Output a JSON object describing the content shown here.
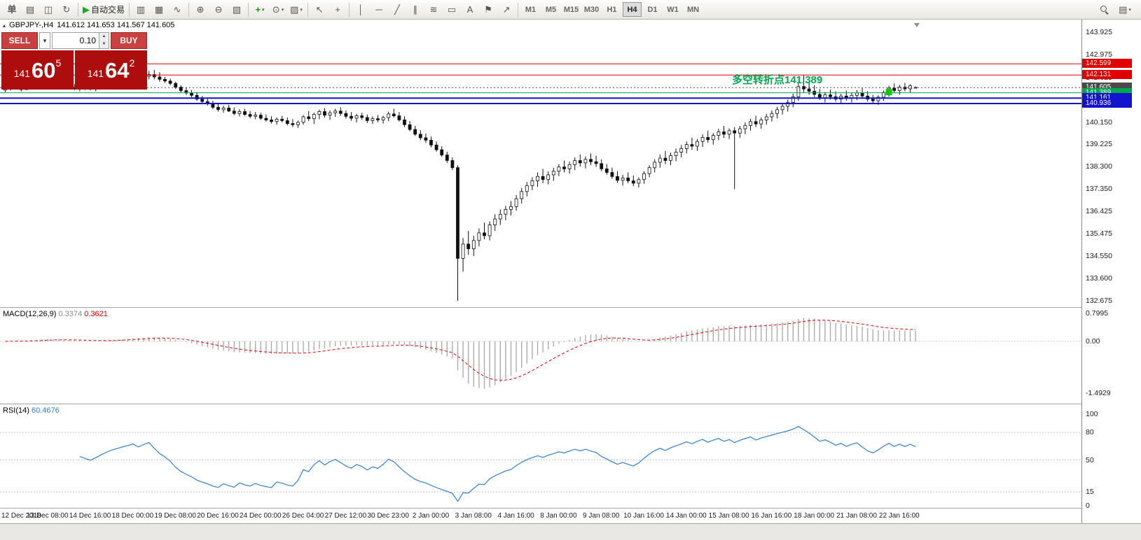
{
  "toolbar": {
    "items": [
      {
        "name": "new-order-button",
        "glyph": "单",
        "bold": true
      },
      {
        "name": "charts-button",
        "glyph": "▤"
      },
      {
        "name": "profiles-button",
        "glyph": "◫"
      },
      {
        "name": "refresh-button",
        "glyph": "↻"
      },
      {
        "type": "sep"
      },
      {
        "name": "auto-trading-button",
        "glyph": "▶",
        "glyph_color": "#28a428",
        "label": "自动交易"
      },
      {
        "type": "sep"
      },
      {
        "name": "bar-chart-button",
        "glyph": "▥"
      },
      {
        "name": "candlestick-chart-button",
        "glyph": "▦"
      },
      {
        "name": "line-chart-button",
        "glyph": "∿"
      },
      {
        "type": "sep"
      },
      {
        "name": "zoom-in-button",
        "glyph": "⊕"
      },
      {
        "name": "zoom-out-button",
        "glyph": "⊖"
      },
      {
        "name": "tile-windows-button",
        "glyph": "▧"
      },
      {
        "type": "sep"
      },
      {
        "name": "indicators-button",
        "glyph": "+",
        "glyph_color": "#1e9e1e",
        "bold": true,
        "caret": true
      },
      {
        "name": "periods-button",
        "glyph": "⊙",
        "caret": true
      },
      {
        "name": "templates-button",
        "glyph": "▨",
        "caret": true
      },
      {
        "type": "sep"
      },
      {
        "name": "cursor-button",
        "glyph": "↖"
      },
      {
        "name": "crosshair-button",
        "glyph": "+"
      },
      {
        "type": "sep"
      },
      {
        "name": "vertical-line-button",
        "glyph": "│"
      },
      {
        "name": "horizontal-line-button",
        "glyph": "─"
      },
      {
        "name": "trendline-button",
        "glyph": "╱"
      },
      {
        "name": "channel-button",
        "glyph": "∥"
      },
      {
        "name": "fibonacci-button",
        "glyph": "≋"
      },
      {
        "name": "shapes-button",
        "glyph": "▭"
      },
      {
        "name": "text-button",
        "glyph": "A"
      },
      {
        "name": "label-button",
        "glyph": "⚑"
      },
      {
        "name": "arrow-tool-button",
        "glyph": "↗"
      },
      {
        "type": "sep"
      }
    ],
    "timeframes": [
      "M1",
      "M5",
      "M15",
      "M30",
      "H1",
      "H4",
      "D1",
      "W1",
      "MN"
    ],
    "active_timeframe": "H4",
    "right_items": [
      {
        "name": "search-button",
        "glyph": "mag"
      },
      {
        "name": "data-window-button",
        "glyph": "▤",
        "caret": true
      }
    ]
  },
  "trade_panel": {
    "sell_label": "SELL",
    "buy_label": "BUY",
    "volume": "0.10",
    "dropdown_caret": "▼",
    "spin_up": "▲",
    "spin_down": "▼",
    "sell_price": {
      "prefix": "141",
      "big": "60",
      "sup": "5"
    },
    "buy_price": {
      "prefix": "141",
      "big": "64",
      "sup": "2"
    }
  },
  "chart": {
    "symbol_title": "GBPJPY-,H4",
    "ohlc_text": "141.612 141.653 141.567 141.605",
    "annotation": {
      "text": "多空转折点141.389",
      "price": 141.389,
      "color": "#00a651"
    },
    "marker": {
      "bar_index": 166,
      "price": 141.43,
      "color": "#00cc00"
    },
    "levels": [
      {
        "price": 142.599,
        "label": "142.599",
        "color": "#e00000",
        "line": "solid",
        "width": 1
      },
      {
        "price": 142.131,
        "label": "142.131",
        "color": "#e00000",
        "line": "solid",
        "width": 1
      },
      {
        "price": 141.605,
        "label": "141.605",
        "color": "#4a4a4a",
        "line": "dotted",
        "width": 1
      },
      {
        "price": 141.389,
        "label": "141.389",
        "color": "#00a651",
        "line": "solid",
        "width": 1
      },
      {
        "price": 141.161,
        "label": "141.161",
        "color": "#1414cc",
        "line": "solid",
        "width": 2
      },
      {
        "price": 140.936,
        "label": "140.936",
        "color": "#1414cc",
        "line": "solid",
        "width": 2
      }
    ]
  },
  "chart_data": {
    "type": "candlestick",
    "title": "GBPJPY- H4",
    "ylim": [
      132.675,
      143.925
    ],
    "y_ticks": [
      143.925,
      142.975,
      142.025,
      141.1,
      140.15,
      139.225,
      138.3,
      137.35,
      136.425,
      135.475,
      134.55,
      133.6,
      132.675
    ],
    "x_labels": [
      "12 Dec 2018",
      "13 Dec 08:00",
      "14 Dec 16:00",
      "18 Dec 00:00",
      "19 Dec 08:00",
      "20 Dec 16:00",
      "24 Dec 00:00",
      "26 Dec 04:00",
      "27 Dec 12:00",
      "30 Dec 23:00",
      "2 Jan 00:00",
      "3 Jan 08:00",
      "4 Jan 16:00",
      "8 Jan 00:00",
      "9 Jan 08:00",
      "10 Jan 16:00",
      "14 Jan 00:00",
      "15 Jan 08:00",
      "16 Jan 16:00",
      "18 Jan 00:00",
      "21 Jan 08:00",
      "22 Jan 16:00"
    ],
    "bars_per_label": 8,
    "candles": [
      [
        141.5,
        141.68,
        141.42,
        141.55
      ],
      [
        141.55,
        141.72,
        141.48,
        141.65
      ],
      [
        141.65,
        141.78,
        141.55,
        141.6
      ],
      [
        141.6,
        141.7,
        141.45,
        141.52
      ],
      [
        141.52,
        141.75,
        141.5,
        141.7
      ],
      [
        141.7,
        141.88,
        141.62,
        141.8
      ],
      [
        141.8,
        141.92,
        141.68,
        141.75
      ],
      [
        141.75,
        141.95,
        141.7,
        141.85
      ],
      [
        141.85,
        141.98,
        141.72,
        141.9
      ],
      [
        141.9,
        141.95,
        141.65,
        141.72
      ],
      [
        141.72,
        141.85,
        141.6,
        141.65
      ],
      [
        141.65,
        141.8,
        141.55,
        141.75
      ],
      [
        141.75,
        141.82,
        141.58,
        141.62
      ],
      [
        141.62,
        141.75,
        141.5,
        141.55
      ],
      [
        141.55,
        141.7,
        141.45,
        141.65
      ],
      [
        141.65,
        141.72,
        141.5,
        141.6
      ],
      [
        141.6,
        141.7,
        141.48,
        141.55
      ],
      [
        141.55,
        141.68,
        141.45,
        141.62
      ],
      [
        141.62,
        141.75,
        141.55,
        141.7
      ],
      [
        141.7,
        141.82,
        141.6,
        141.78
      ],
      [
        141.78,
        141.9,
        141.7,
        141.85
      ],
      [
        141.85,
        141.95,
        141.75,
        141.9
      ],
      [
        141.9,
        142.0,
        141.8,
        141.95
      ],
      [
        141.95,
        142.05,
        141.85,
        142.0
      ],
      [
        142.0,
        142.1,
        141.9,
        142.05
      ],
      [
        142.05,
        142.2,
        141.95,
        142.0
      ],
      [
        142.0,
        142.12,
        141.88,
        142.08
      ],
      [
        142.08,
        142.3,
        141.95,
        142.15
      ],
      [
        142.15,
        142.35,
        141.95,
        142.05
      ],
      [
        142.05,
        142.25,
        141.85,
        141.95
      ],
      [
        141.95,
        142.05,
        141.8,
        141.88
      ],
      [
        141.88,
        141.98,
        141.7,
        141.78
      ],
      [
        141.78,
        141.85,
        141.55,
        141.62
      ],
      [
        141.62,
        141.7,
        141.4,
        141.48
      ],
      [
        141.48,
        141.6,
        141.3,
        141.38
      ],
      [
        141.38,
        141.5,
        141.2,
        141.28
      ],
      [
        141.28,
        141.4,
        141.05,
        141.12
      ],
      [
        141.12,
        141.25,
        140.95,
        141.02
      ],
      [
        141.02,
        141.15,
        140.85,
        140.92
      ],
      [
        140.92,
        141.05,
        140.7,
        140.78
      ],
      [
        140.78,
        140.95,
        140.6,
        140.68
      ],
      [
        140.68,
        140.85,
        140.55,
        140.75
      ],
      [
        140.75,
        140.88,
        140.58,
        140.62
      ],
      [
        140.62,
        140.78,
        140.45,
        140.52
      ],
      [
        140.52,
        140.7,
        140.4,
        140.6
      ],
      [
        140.6,
        140.72,
        140.42,
        140.48
      ],
      [
        140.48,
        140.62,
        140.32,
        140.4
      ],
      [
        140.4,
        140.58,
        140.28,
        140.45
      ],
      [
        140.45,
        140.55,
        140.25,
        140.32
      ],
      [
        140.32,
        140.48,
        140.18,
        140.25
      ],
      [
        140.25,
        140.4,
        140.1,
        140.18
      ],
      [
        140.18,
        140.35,
        140.05,
        140.28
      ],
      [
        140.28,
        140.42,
        140.15,
        140.22
      ],
      [
        140.22,
        140.35,
        140.02,
        140.1
      ],
      [
        140.1,
        140.28,
        139.95,
        140.05
      ],
      [
        140.05,
        140.22,
        139.92,
        140.15
      ],
      [
        140.15,
        140.45,
        140.05,
        140.38
      ],
      [
        140.38,
        140.62,
        140.2,
        140.3
      ],
      [
        140.3,
        140.55,
        140.08,
        140.48
      ],
      [
        140.48,
        140.68,
        140.28,
        140.6
      ],
      [
        140.6,
        140.75,
        140.35,
        140.45
      ],
      [
        140.45,
        140.65,
        140.25,
        140.55
      ],
      [
        140.55,
        140.72,
        140.38,
        140.62
      ],
      [
        140.62,
        140.78,
        140.42,
        140.52
      ],
      [
        140.52,
        140.65,
        140.3,
        140.4
      ],
      [
        140.4,
        140.58,
        140.22,
        140.32
      ],
      [
        140.32,
        140.5,
        140.15,
        140.42
      ],
      [
        140.42,
        140.55,
        140.25,
        140.35
      ],
      [
        140.35,
        140.48,
        140.12,
        140.22
      ],
      [
        140.22,
        140.4,
        140.08,
        140.3
      ],
      [
        140.3,
        140.45,
        140.15,
        140.25
      ],
      [
        140.25,
        140.42,
        140.1,
        140.35
      ],
      [
        140.35,
        140.6,
        140.2,
        140.5
      ],
      [
        140.5,
        140.72,
        140.35,
        140.42
      ],
      [
        140.42,
        140.58,
        140.18,
        140.25
      ],
      [
        140.25,
        140.4,
        139.95,
        140.05
      ],
      [
        140.05,
        140.2,
        139.78,
        139.85
      ],
      [
        139.85,
        140.0,
        139.58,
        139.65
      ],
      [
        139.65,
        139.82,
        139.4,
        139.5
      ],
      [
        139.5,
        139.68,
        139.28,
        139.4
      ],
      [
        139.4,
        139.55,
        139.1,
        139.2
      ],
      [
        139.2,
        139.35,
        138.92,
        139.0
      ],
      [
        139.0,
        139.15,
        138.7,
        138.78
      ],
      [
        138.78,
        138.92,
        138.45,
        138.55
      ],
      [
        138.55,
        138.68,
        138.15,
        138.25
      ],
      [
        138.25,
        138.35,
        132.675,
        134.45
      ],
      [
        134.45,
        135.3,
        133.9,
        135.05
      ],
      [
        135.05,
        135.6,
        134.6,
        134.85
      ],
      [
        134.85,
        135.4,
        134.55,
        135.2
      ],
      [
        135.2,
        135.7,
        134.95,
        135.52
      ],
      [
        135.52,
        135.95,
        135.25,
        135.4
      ],
      [
        135.4,
        136.0,
        135.2,
        135.85
      ],
      [
        135.85,
        136.3,
        135.6,
        136.1
      ],
      [
        136.1,
        136.5,
        135.85,
        136.3
      ],
      [
        136.3,
        136.65,
        136.05,
        136.5
      ],
      [
        136.5,
        136.85,
        136.25,
        136.62
      ],
      [
        136.62,
        137.1,
        136.45,
        136.95
      ],
      [
        136.95,
        137.4,
        136.75,
        137.25
      ],
      [
        137.25,
        137.65,
        137.05,
        137.5
      ],
      [
        137.5,
        137.85,
        137.3,
        137.7
      ],
      [
        137.7,
        138.05,
        137.45,
        137.88
      ],
      [
        137.88,
        138.2,
        137.6,
        137.75
      ],
      [
        137.75,
        138.1,
        137.55,
        137.95
      ],
      [
        137.95,
        138.25,
        137.7,
        138.1
      ],
      [
        138.1,
        138.4,
        137.9,
        138.28
      ],
      [
        138.28,
        138.55,
        138.05,
        138.2
      ],
      [
        138.2,
        138.5,
        138.0,
        138.38
      ],
      [
        138.38,
        138.68,
        138.15,
        138.55
      ],
      [
        138.55,
        138.8,
        138.3,
        138.45
      ],
      [
        138.45,
        138.72,
        138.22,
        138.6
      ],
      [
        138.6,
        138.85,
        138.35,
        138.5
      ],
      [
        138.5,
        138.75,
        138.28,
        138.42
      ],
      [
        138.42,
        138.6,
        138.1,
        138.2
      ],
      [
        138.2,
        138.4,
        137.95,
        138.05
      ],
      [
        138.05,
        138.25,
        137.78,
        137.88
      ],
      [
        137.88,
        138.1,
        137.62,
        137.72
      ],
      [
        137.72,
        137.95,
        137.5,
        137.82
      ],
      [
        137.82,
        138.05,
        137.6,
        137.7
      ],
      [
        137.7,
        137.92,
        137.48,
        137.6
      ],
      [
        137.6,
        137.85,
        137.42,
        137.75
      ],
      [
        137.75,
        138.1,
        137.58,
        138.0
      ],
      [
        138.0,
        138.35,
        137.85,
        138.25
      ],
      [
        138.25,
        138.6,
        138.05,
        138.48
      ],
      [
        138.48,
        138.8,
        138.25,
        138.65
      ],
      [
        138.65,
        138.95,
        138.4,
        138.55
      ],
      [
        138.55,
        138.88,
        138.35,
        138.75
      ],
      [
        138.75,
        139.05,
        138.52,
        138.9
      ],
      [
        138.9,
        139.2,
        138.68,
        139.05
      ],
      [
        139.05,
        139.35,
        138.85,
        139.22
      ],
      [
        139.22,
        139.5,
        139.0,
        139.15
      ],
      [
        139.15,
        139.45,
        138.95,
        139.35
      ],
      [
        139.35,
        139.65,
        139.12,
        139.52
      ],
      [
        139.52,
        139.8,
        139.3,
        139.42
      ],
      [
        139.42,
        139.7,
        139.22,
        139.6
      ],
      [
        139.6,
        139.88,
        139.4,
        139.75
      ],
      [
        139.75,
        140.0,
        139.5,
        139.65
      ],
      [
        139.65,
        139.9,
        139.45,
        139.8
      ],
      [
        139.8,
        139.95,
        137.35,
        139.7
      ],
      [
        139.7,
        140.0,
        139.5,
        139.88
      ],
      [
        139.88,
        140.15,
        139.65,
        140.02
      ],
      [
        140.02,
        140.3,
        139.8,
        140.18
      ],
      [
        140.18,
        140.42,
        139.95,
        140.08
      ],
      [
        140.08,
        140.35,
        139.88,
        140.25
      ],
      [
        140.25,
        140.5,
        140.05,
        140.38
      ],
      [
        140.38,
        140.65,
        140.18,
        140.52
      ],
      [
        140.52,
        140.8,
        140.32,
        140.68
      ],
      [
        140.68,
        140.95,
        140.48,
        140.82
      ],
      [
        140.82,
        141.1,
        140.6,
        140.98
      ],
      [
        140.98,
        141.35,
        140.78,
        141.22
      ],
      [
        141.22,
        141.8,
        141.05,
        141.65
      ],
      [
        141.65,
        142.12,
        141.4,
        141.55
      ],
      [
        141.55,
        141.85,
        141.3,
        141.45
      ],
      [
        141.45,
        141.7,
        141.2,
        141.32
      ],
      [
        141.32,
        141.55,
        141.08,
        141.18
      ],
      [
        141.18,
        141.42,
        140.98,
        141.3
      ],
      [
        141.3,
        141.52,
        141.1,
        141.22
      ],
      [
        141.22,
        141.45,
        141.02,
        141.12
      ],
      [
        141.12,
        141.35,
        140.95,
        141.25
      ],
      [
        141.25,
        141.48,
        141.05,
        141.15
      ],
      [
        141.15,
        141.4,
        140.98,
        141.28
      ],
      [
        141.28,
        141.5,
        141.08,
        141.38
      ],
      [
        141.38,
        141.58,
        141.15,
        141.25
      ],
      [
        141.25,
        141.45,
        141.02,
        141.12
      ],
      [
        141.12,
        141.3,
        140.92,
        141.05
      ],
      [
        141.05,
        141.28,
        140.88,
        141.2
      ],
      [
        141.2,
        141.48,
        141.05,
        141.4
      ],
      [
        141.4,
        141.68,
        141.22,
        141.58
      ],
      [
        141.58,
        141.78,
        141.38,
        141.48
      ],
      [
        141.48,
        141.72,
        141.3,
        141.62
      ],
      [
        141.62,
        141.8,
        141.45,
        141.55
      ],
      [
        141.55,
        141.75,
        141.4,
        141.68
      ],
      [
        141.612,
        141.653,
        141.567,
        141.605
      ]
    ]
  },
  "macd": {
    "name": "MACD(12,26,9)",
    "value1": "0.3374",
    "value2": "0.3621",
    "fast": 12,
    "slow": 26,
    "signal": 9,
    "y_ticks": [
      "0.7995",
      "0.00",
      "-1.4929"
    ]
  },
  "rsi": {
    "name": "RSI(14)",
    "value": "60.4676",
    "period": 14,
    "levels": [
      80,
      50,
      15
    ],
    "y_ticks": [
      "100",
      "80",
      "50",
      "15",
      "0"
    ]
  }
}
